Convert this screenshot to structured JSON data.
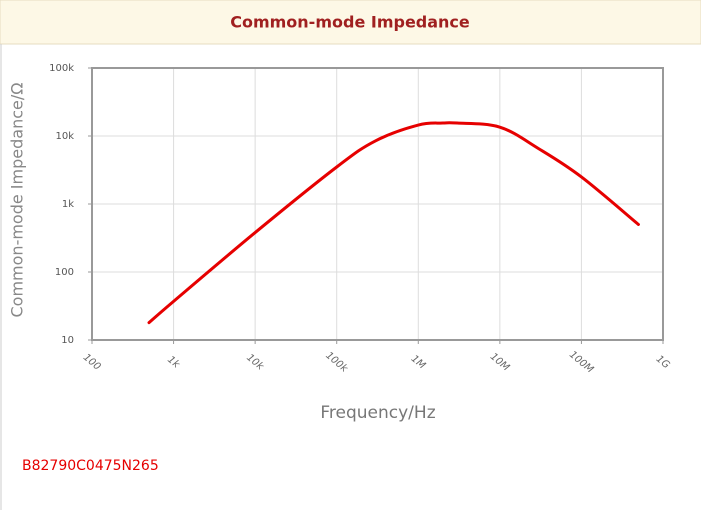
{
  "chart_data": {
    "type": "line",
    "title": "Common-mode Impedance",
    "x_label": "Frequency/Hz",
    "y_label": "Common-mode Impedance/Ω",
    "x_scale": "log",
    "y_scale": "log",
    "grid": true,
    "xlim": [
      100,
      1000000000
    ],
    "xticks": [
      100,
      {
        "value": 1000,
        "label": "1k"
      },
      {
        "value": 10000,
        "label": "10k"
      },
      {
        "value": 100000,
        "label": "100k"
      },
      {
        "value": 1000000,
        "label": "1M"
      },
      {
        "value": 10000000,
        "label": "10M"
      },
      {
        "value": 100000000,
        "label": "100M"
      },
      {
        "value": 1000000000,
        "label": "1G"
      }
    ],
    "ylim": [
      10,
      100000
    ],
    "yticks": [
      10,
      100,
      {
        "value": 1000,
        "label": "1k"
      },
      {
        "value": 10000,
        "label": "10k"
      },
      {
        "value": 100000,
        "label": "100k"
      }
    ],
    "series": [
      {
        "name": "B82790C0475N265",
        "color": "#e60000",
        "x": [
          500,
          1000,
          10000,
          100000,
          300000,
          1000000,
          2000000,
          3000000,
          10000000,
          30000000,
          100000000,
          500000000
        ],
        "values": [
          18,
          37,
          380,
          3500,
          8500,
          14500,
          15500,
          15500,
          13500,
          6500,
          2500,
          500
        ]
      }
    ]
  }
}
